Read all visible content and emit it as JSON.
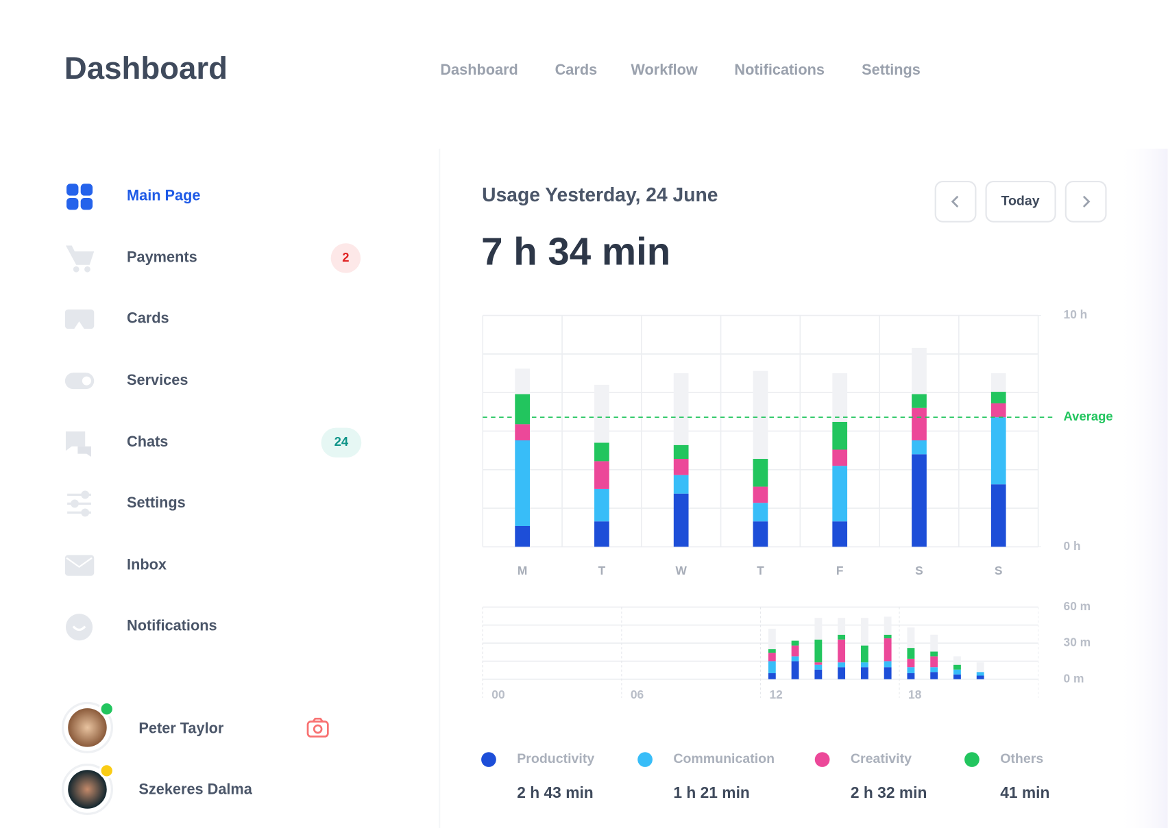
{
  "header": {
    "title": "Dashboard",
    "nav": [
      "Dashboard",
      "Cards",
      "Workflow",
      "Notifications",
      "Settings"
    ]
  },
  "sidebar": {
    "items": [
      {
        "label": "Main Page"
      },
      {
        "label": "Payments",
        "badge": "2"
      },
      {
        "label": "Cards"
      },
      {
        "label": "Services"
      },
      {
        "label": "Chats",
        "badge": "24"
      },
      {
        "label": "Settings"
      },
      {
        "label": "Inbox"
      },
      {
        "label": "Notifications"
      }
    ],
    "users": [
      {
        "name": "Peter Taylor"
      },
      {
        "name": "Szekeres Dalma"
      }
    ]
  },
  "usage": {
    "title": "Usage Yesterday, 24 June",
    "total": "7 h 34 min",
    "button": "Today"
  },
  "chart_data": [
    {
      "type": "stacked_bar",
      "categories": [
        "M",
        "T",
        "W",
        "T",
        "F",
        "S",
        "S"
      ],
      "series": [
        {
          "name": "Productivity",
          "color": "#1d4ed8",
          "values": [
            0.9,
            1.1,
            2.3,
            1.1,
            1.1,
            4.0,
            2.7
          ]
        },
        {
          "name": "Communication",
          "color": "#38bdf8",
          "values": [
            3.7,
            1.4,
            0.8,
            0.8,
            2.4,
            0.6,
            2.9
          ]
        },
        {
          "name": "Creativity",
          "color": "#ec4899",
          "values": [
            0.7,
            1.2,
            0.7,
            0.7,
            0.7,
            1.4,
            0.6
          ]
        },
        {
          "name": "Others",
          "color": "#22c55e",
          "values": [
            1.3,
            0.8,
            0.6,
            1.2,
            1.2,
            0.6,
            0.5
          ]
        },
        {
          "color": "#f1f2f5",
          "values": [
            1.1,
            2.5,
            3.1,
            3.8,
            2.1,
            2.0,
            0.8
          ]
        }
      ],
      "ylim": [
        0,
        10
      ],
      "yticks": [
        {
          "value": 0,
          "label": "0 h"
        },
        {
          "value": 10,
          "label": "10 h"
        }
      ],
      "average": {
        "value": 5.6,
        "label": "Average",
        "color": "#22c55e"
      },
      "grid": true
    },
    {
      "type": "stacked_bar",
      "x": [
        12,
        13,
        14,
        15,
        16,
        17,
        18,
        19,
        20,
        21
      ],
      "series": [
        {
          "name": "Productivity",
          "color": "#1d4ed8",
          "values": [
            5,
            15,
            8,
            10,
            10,
            10,
            5,
            6,
            4,
            3
          ]
        },
        {
          "name": "Communication",
          "color": "#38bdf8",
          "values": [
            10,
            4,
            4,
            4,
            4,
            5,
            5,
            4,
            4,
            3
          ]
        },
        {
          "name": "Creativity",
          "color": "#ec4899",
          "values": [
            7,
            9,
            2,
            19,
            0,
            19,
            7,
            9,
            0,
            0
          ]
        },
        {
          "name": "Others",
          "color": "#22c55e",
          "values": [
            3,
            4,
            19,
            4,
            14,
            3,
            9,
            4,
            4,
            0
          ]
        },
        {
          "color": "#f1f2f5",
          "values": [
            17,
            0,
            18,
            14,
            23,
            15,
            17,
            14,
            7,
            8
          ]
        }
      ],
      "xlim": [
        0,
        24
      ],
      "xticks": [
        {
          "value": 0,
          "label": "00"
        },
        {
          "value": 6,
          "label": "06"
        },
        12,
        18
      ],
      "ylim": [
        0,
        60
      ],
      "yticks": [
        {
          "value": 0,
          "label": "0 m"
        },
        {
          "value": 30,
          "label": "30 m"
        },
        {
          "value": 60,
          "label": "60 m"
        }
      ],
      "grid": true
    }
  ],
  "legend_totals": [
    "2 h 43 min",
    "1 h 21 min",
    "2 h 32 min",
    "41 min"
  ]
}
